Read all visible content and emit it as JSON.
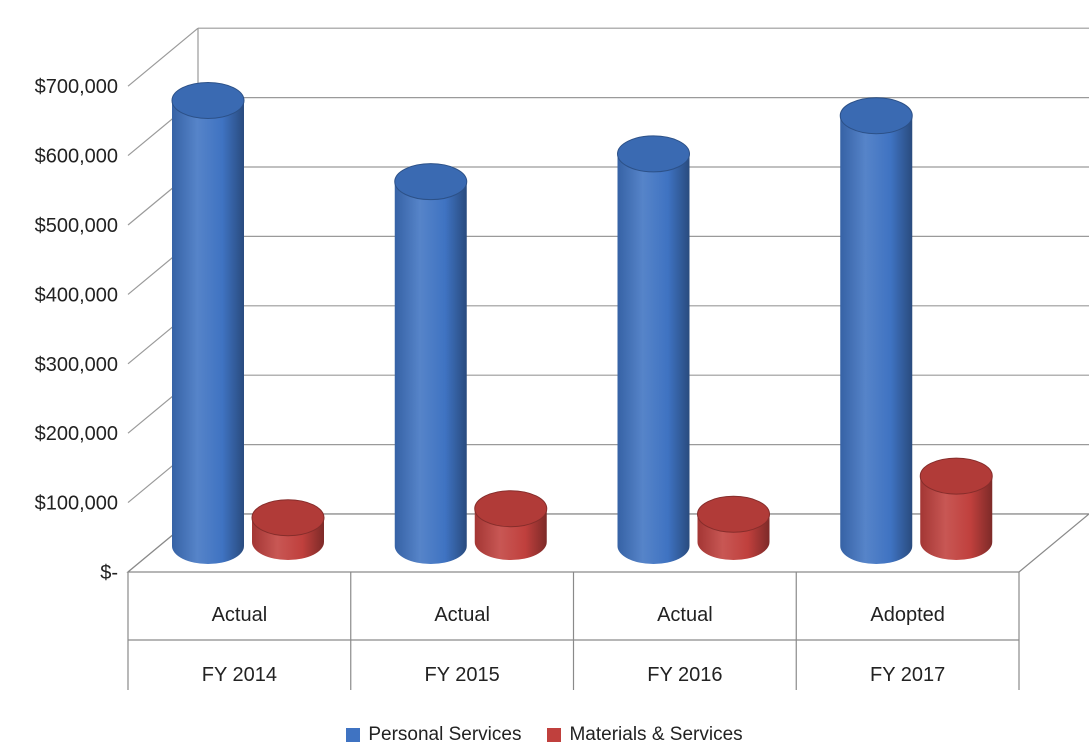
{
  "chart_data": {
    "type": "bar",
    "style": "3d-cylinder",
    "categories": [
      {
        "top": "Actual",
        "bottom": "FY 2014"
      },
      {
        "top": "Actual",
        "bottom": "FY 2015"
      },
      {
        "top": "Actual",
        "bottom": "FY 2016"
      },
      {
        "top": "Adopted",
        "bottom": "FY 2017"
      }
    ],
    "series": [
      {
        "name": "Personal Services",
        "color": "#3f73c2",
        "values": [
          642000,
          525000,
          565000,
          620000
        ]
      },
      {
        "name": "Materials & Services",
        "color": "#c0403d",
        "values": [
          35000,
          48000,
          40000,
          95000
        ]
      }
    ],
    "yticks": [
      "$-",
      "$100,000",
      "$200,000",
      "$300,000",
      "$400,000",
      "$500,000",
      "$600,000",
      "$700,000"
    ],
    "ylim": [
      0,
      700000
    ],
    "grid": true,
    "legend_position": "bottom"
  }
}
